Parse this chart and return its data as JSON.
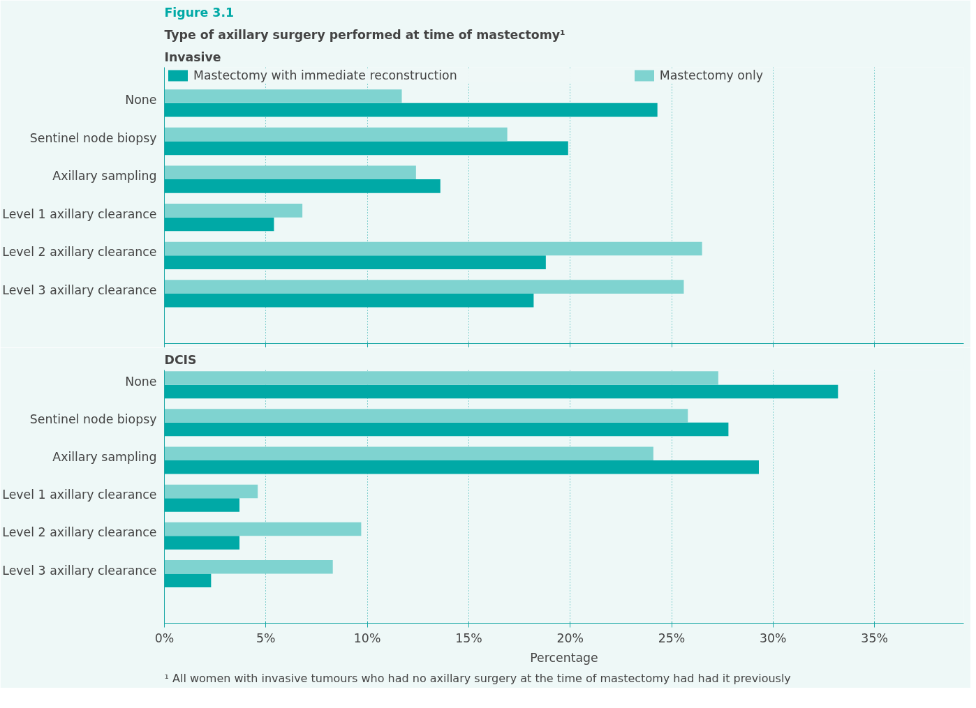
{
  "chart_data": [
    {
      "type": "bar",
      "orientation": "horizontal",
      "title": "Figure 3.1",
      "subtitle": "Type of axillary surgery performed at time of mastectomy¹",
      "ylabel": "Invasive",
      "categories": [
        "None",
        "Sentinel node biopsy",
        "Axillary sampling",
        "Level 1 axillary clearance",
        "Level 2 axillary clearance",
        "Level 3 axillary clearance"
      ],
      "series": [
        {
          "name": "Mastectomy with immediate reconstruction",
          "color": "#00a9a6",
          "values": [
            24.3,
            19.9,
            13.6,
            5.4,
            18.8,
            18.2
          ]
        },
        {
          "name": "Mastectomy only",
          "color": "#7fd3d0",
          "values": [
            11.7,
            16.9,
            12.4,
            6.8,
            26.5,
            25.6
          ]
        }
      ],
      "xlim": [
        0,
        39.4
      ],
      "xticks": [
        {
          "value": 0,
          "label": null
        },
        {
          "value": 5,
          "label": null
        },
        {
          "value": 10,
          "label": null
        },
        {
          "value": 15,
          "label": null
        },
        {
          "value": 20,
          "label": null
        },
        {
          "value": 25,
          "label": null
        },
        {
          "value": 30,
          "label": null
        },
        {
          "value": 35,
          "label": null
        }
      ],
      "grid": "x",
      "legend": "top",
      "tick_labels": "y"
    },
    {
      "type": "bar",
      "orientation": "horizontal",
      "ylabel": "DCIS",
      "xlabel": "Percentage",
      "categories": [
        "None",
        "Sentinel node biopsy",
        "Axillary sampling",
        "Level 1 axillary clearance",
        "Level 2 axillary clearance",
        "Level 3 axillary clearance"
      ],
      "series": [
        {
          "color": "#00a9a6",
          "values": [
            33.2,
            27.8,
            29.3,
            3.7,
            3.7,
            2.3
          ]
        },
        {
          "color": "#7fd3d0",
          "values": [
            27.3,
            25.8,
            24.1,
            4.6,
            9.7,
            8.3
          ]
        }
      ],
      "xlim": [
        0,
        39.4
      ],
      "xticks": [
        {
          "value": 0,
          "label": "0%"
        },
        {
          "value": 5,
          "label": "5%"
        },
        {
          "value": 10,
          "label": "10%"
        },
        {
          "value": 15,
          "label": "15%"
        },
        {
          "value": 20,
          "label": "20%"
        },
        {
          "value": 25,
          "label": "25%"
        },
        {
          "value": 30,
          "label": "30%"
        },
        {
          "value": 35,
          "label": "35%"
        }
      ],
      "grid": "x",
      "annotations": [
        "¹ All women with invasive tumours who had no axillary surgery at the time of mastectomy had had it previously"
      ]
    }
  ]
}
